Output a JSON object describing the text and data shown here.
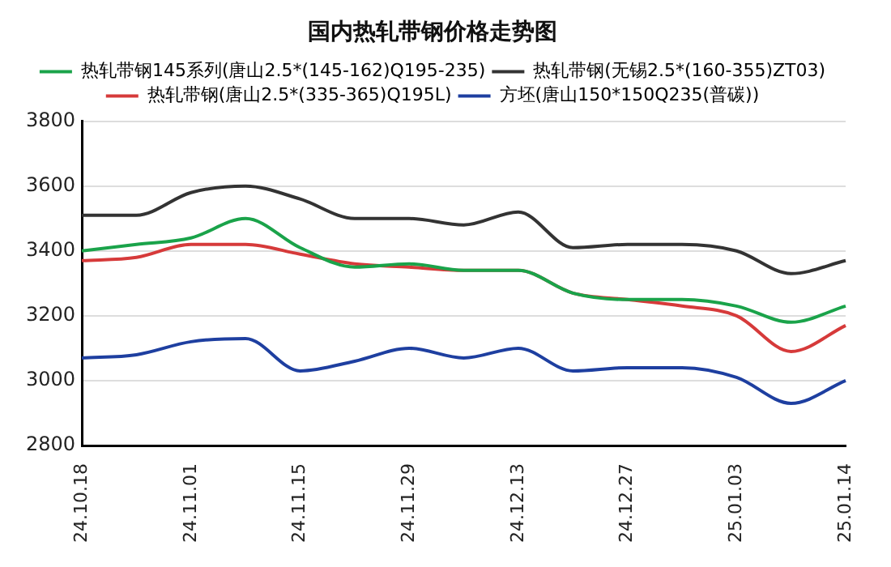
{
  "chart_data": {
    "type": "line",
    "title": "国内热轧带钢价格走势图",
    "categories": [
      "24.10.18",
      null,
      "24.11.01",
      null,
      "24.11.15",
      null,
      "24.11.29",
      null,
      "24.12.13",
      null,
      "24.12.27",
      null,
      "25.01.03",
      null,
      "25.01.14"
    ],
    "series": [
      {
        "name": "热轧带钢145系列(唐山2.5*(145-162)Q195-235)",
        "color": "#1aa34a",
        "values": [
          3400,
          3420,
          3440,
          3500,
          3410,
          3350,
          3360,
          3340,
          3340,
          3270,
          3250,
          3250,
          3230,
          3180,
          3230
        ]
      },
      {
        "name": "热轧带钢(无锡2.5*(160-355)ZT03)",
        "color": "#333333",
        "values": [
          3510,
          3510,
          3580,
          3600,
          3560,
          3500,
          3500,
          3480,
          3520,
          3410,
          3420,
          3420,
          3400,
          3330,
          3370
        ]
      },
      {
        "name": "热轧带钢(唐山2.5*(335-365)Q195L)",
        "color": "#d63a3a",
        "values": [
          3370,
          3380,
          3420,
          3420,
          3390,
          3360,
          3350,
          3340,
          3340,
          3270,
          3250,
          3230,
          3200,
          3090,
          3170
        ]
      },
      {
        "name": "方坯(唐山150*150Q235(普碳))",
        "color": "#1e3fa0",
        "values": [
          3070,
          3080,
          3120,
          3130,
          3030,
          3060,
          3100,
          3070,
          3100,
          3030,
          3040,
          3040,
          3010,
          2930,
          3000
        ]
      }
    ],
    "ylim": [
      2800,
      3800
    ],
    "yticks": [
      2800,
      3000,
      3200,
      3400,
      3600,
      3800
    ],
    "grid": "y",
    "legend": "top",
    "marker": "none",
    "line_style": "solid"
  }
}
